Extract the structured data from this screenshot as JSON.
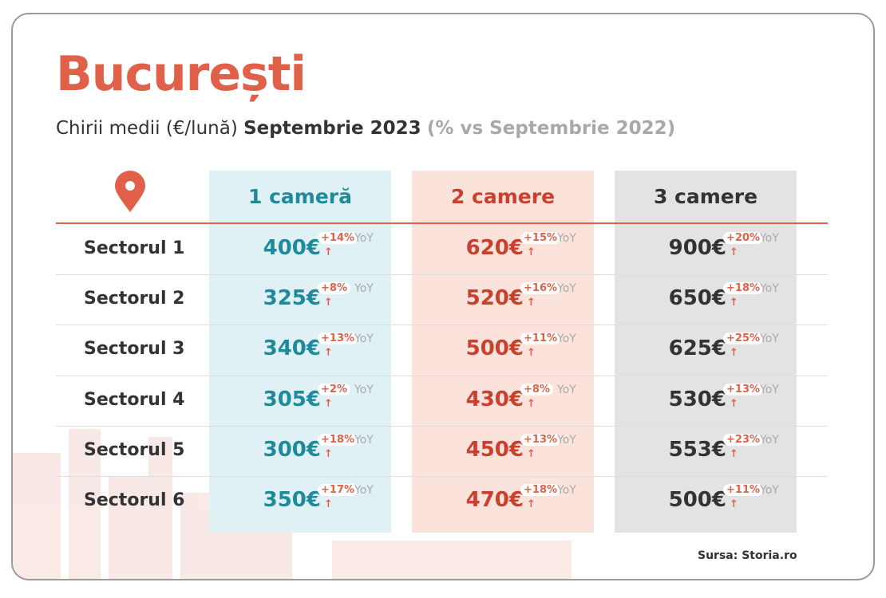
{
  "header": {
    "title": "București",
    "subtitle_lead": "Chirii medii (€/lună)",
    "subtitle_bold": "Septembrie 2023",
    "subtitle_note": "(% vs Septembrie 2022)"
  },
  "table": {
    "columns": [
      "1 cameră",
      "2 camere",
      "3 camere"
    ],
    "rows": [
      {
        "label": "Sectorul 1",
        "cells": [
          {
            "price": "400€",
            "change": "+14%",
            "unit": "YoY"
          },
          {
            "price": "620€",
            "change": "+15%",
            "unit": "YoY"
          },
          {
            "price": "900€",
            "change": "+20%",
            "unit": "YoY"
          }
        ]
      },
      {
        "label": "Sectorul 2",
        "cells": [
          {
            "price": "325€",
            "change": "+8%",
            "unit": "YoY"
          },
          {
            "price": "520€",
            "change": "+16%",
            "unit": "YoY"
          },
          {
            "price": "650€",
            "change": "+18%",
            "unit": "YoY"
          }
        ]
      },
      {
        "label": "Sectorul 3",
        "cells": [
          {
            "price": "340€",
            "change": "+13%",
            "unit": "YoY"
          },
          {
            "price": "500€",
            "change": "+11%",
            "unit": "YoY"
          },
          {
            "price": "625€",
            "change": "+25%",
            "unit": "YoY"
          }
        ]
      },
      {
        "label": "Sectorul 4",
        "cells": [
          {
            "price": "305€",
            "change": "+2%",
            "unit": "YoY"
          },
          {
            "price": "430€",
            "change": "+8%",
            "unit": "YoY"
          },
          {
            "price": "530€",
            "change": "+13%",
            "unit": "YoY"
          }
        ]
      },
      {
        "label": "Sectorul 5",
        "cells": [
          {
            "price": "300€",
            "change": "+18%",
            "unit": "YoY"
          },
          {
            "price": "450€",
            "change": "+13%",
            "unit": "YoY"
          },
          {
            "price": "553€",
            "change": "+23%",
            "unit": "YoY"
          }
        ]
      },
      {
        "label": "Sectorul 6",
        "cells": [
          {
            "price": "350€",
            "change": "+17%",
            "unit": "YoY"
          },
          {
            "price": "470€",
            "change": "+18%",
            "unit": "YoY"
          },
          {
            "price": "500€",
            "change": "+11%",
            "unit": "YoY"
          }
        ]
      }
    ]
  },
  "footer": {
    "source": "Sursa: Storia.ro"
  }
}
